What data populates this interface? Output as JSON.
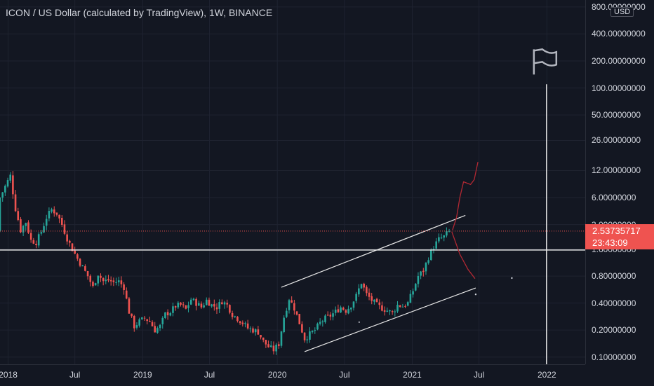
{
  "header": {
    "title": "ICON / US Dollar (calculated by TradingView), 1W, BINANCE"
  },
  "price_axis": {
    "currency": "USD",
    "last_price": "2.53735717",
    "countdown": "23:43:09"
  },
  "colors": {
    "background": "#131722",
    "up": "#26a69a",
    "down": "#ef5350",
    "drawing_white": "#e8e8e8",
    "projection": "#b22833",
    "price_line": "#ef5350"
  },
  "chart_data": {
    "type": "candlestick",
    "scale": "log",
    "ylim": [
      0.0977,
      890
    ],
    "y_ticks": [
      800,
      400,
      200,
      100,
      50,
      26,
      12,
      6,
      3,
      1.6,
      0.8,
      0.4,
      0.2,
      0.1
    ],
    "y_tick_labels": [
      "800.00000000",
      "400.00000000",
      "200.00000000",
      "100.00000000",
      "50.00000000",
      "26.00000000",
      "12.00000000",
      "6.00000000",
      "3.00000000",
      "1.60000000",
      "0.80000000",
      "0.40000000",
      "0.20000000",
      "0.10000000"
    ],
    "x_ticks": [
      {
        "label": "2018",
        "date": "2018-01-01"
      },
      {
        "label": "Jul",
        "date": "2018-07-01"
      },
      {
        "label": "2019",
        "date": "2019-01-01"
      },
      {
        "label": "Jul",
        "date": "2019-07-01"
      },
      {
        "label": "2020",
        "date": "2020-01-01"
      },
      {
        "label": "Jul",
        "date": "2020-07-01"
      },
      {
        "label": "2021",
        "date": "2021-01-01"
      },
      {
        "label": "Jul",
        "date": "2021-07-01"
      },
      {
        "label": "2022",
        "date": "2022-01-01"
      }
    ],
    "xlim": [
      "2017-12-10",
      "2022-04-15"
    ],
    "close_path": [
      [
        "2017-12-10",
        6.0
      ],
      [
        "2017-12-24",
        8.0
      ],
      [
        "2018-01-07",
        10.5
      ],
      [
        "2018-01-21",
        4.5
      ],
      [
        "2018-02-04",
        2.6
      ],
      [
        "2018-02-18",
        3.2
      ],
      [
        "2018-03-04",
        2.0
      ],
      [
        "2018-03-18",
        1.9
      ],
      [
        "2018-04-01",
        2.5
      ],
      [
        "2018-04-15",
        3.6
      ],
      [
        "2018-04-29",
        4.4
      ],
      [
        "2018-05-13",
        4.0
      ],
      [
        "2018-05-27",
        3.0
      ],
      [
        "2018-06-10",
        2.1
      ],
      [
        "2018-06-24",
        1.6
      ],
      [
        "2018-07-08",
        1.25
      ],
      [
        "2018-07-22",
        1.0
      ],
      [
        "2018-08-05",
        0.8
      ],
      [
        "2018-08-19",
        0.6
      ],
      [
        "2018-09-02",
        0.85
      ],
      [
        "2018-09-16",
        0.7
      ],
      [
        "2018-09-30",
        0.72
      ],
      [
        "2018-10-14",
        0.68
      ],
      [
        "2018-10-28",
        0.7
      ],
      [
        "2018-11-11",
        0.6
      ],
      [
        "2018-11-25",
        0.32
      ],
      [
        "2018-12-09",
        0.22
      ],
      [
        "2018-12-23",
        0.25
      ],
      [
        "2019-01-06",
        0.27
      ],
      [
        "2019-01-20",
        0.25
      ],
      [
        "2019-02-03",
        0.2
      ],
      [
        "2019-02-17",
        0.22
      ],
      [
        "2019-03-03",
        0.3
      ],
      [
        "2019-03-17",
        0.32
      ],
      [
        "2019-03-31",
        0.37
      ],
      [
        "2019-04-14",
        0.38
      ],
      [
        "2019-04-28",
        0.34
      ],
      [
        "2019-05-12",
        0.44
      ],
      [
        "2019-05-26",
        0.4
      ],
      [
        "2019-06-09",
        0.36
      ],
      [
        "2019-06-23",
        0.43
      ],
      [
        "2019-07-07",
        0.38
      ],
      [
        "2019-07-21",
        0.36
      ],
      [
        "2019-08-04",
        0.42
      ],
      [
        "2019-08-18",
        0.38
      ],
      [
        "2019-09-01",
        0.3
      ],
      [
        "2019-09-15",
        0.27
      ],
      [
        "2019-09-29",
        0.24
      ],
      [
        "2019-10-13",
        0.21
      ],
      [
        "2019-10-27",
        0.2
      ],
      [
        "2019-11-10",
        0.19
      ],
      [
        "2019-11-24",
        0.15
      ],
      [
        "2019-12-08",
        0.13
      ],
      [
        "2019-12-22",
        0.12
      ],
      [
        "2020-01-05",
        0.14
      ],
      [
        "2020-01-19",
        0.28
      ],
      [
        "2020-02-02",
        0.45
      ],
      [
        "2020-02-16",
        0.35
      ],
      [
        "2020-03-01",
        0.24
      ],
      [
        "2020-03-15",
        0.16
      ],
      [
        "2020-03-29",
        0.18
      ],
      [
        "2020-04-12",
        0.2
      ],
      [
        "2020-04-26",
        0.24
      ],
      [
        "2020-05-10",
        0.27
      ],
      [
        "2020-05-24",
        0.29
      ],
      [
        "2020-06-07",
        0.32
      ],
      [
        "2020-06-21",
        0.36
      ],
      [
        "2020-07-05",
        0.33
      ],
      [
        "2020-07-19",
        0.38
      ],
      [
        "2020-08-02",
        0.48
      ],
      [
        "2020-08-16",
        0.68
      ],
      [
        "2020-08-30",
        0.5
      ],
      [
        "2020-09-13",
        0.43
      ],
      [
        "2020-09-27",
        0.38
      ],
      [
        "2020-10-11",
        0.35
      ],
      [
        "2020-10-25",
        0.33
      ],
      [
        "2020-11-08",
        0.31
      ],
      [
        "2020-11-22",
        0.38
      ],
      [
        "2020-12-06",
        0.37
      ],
      [
        "2020-12-20",
        0.4
      ],
      [
        "2021-01-03",
        0.55
      ],
      [
        "2021-01-17",
        0.8
      ],
      [
        "2021-01-31",
        0.92
      ],
      [
        "2021-02-14",
        1.3
      ],
      [
        "2021-02-28",
        1.7
      ],
      [
        "2021-03-14",
        2.05
      ],
      [
        "2021-03-28",
        2.2
      ],
      [
        "2021-04-11",
        2.54
      ]
    ],
    "annotations": [
      {
        "type": "channel-upper",
        "from": [
          "2020-01-12",
          0.6
        ],
        "to": [
          "2021-05-25",
          3.8
        ]
      },
      {
        "type": "channel-lower",
        "from": [
          "2020-03-15",
          0.115
        ],
        "to": [
          "2021-06-22",
          0.59
        ]
      },
      {
        "type": "horizontal-line",
        "value": 1.56
      },
      {
        "type": "vertical-line",
        "date": "2021-12-31"
      },
      {
        "type": "flag",
        "date": "2021-12-31"
      },
      {
        "type": "projection-up",
        "points": [
          [
            "2021-04-20",
            2.6
          ],
          [
            "2021-05-01",
            3.6
          ],
          [
            "2021-05-10",
            6.0
          ],
          [
            "2021-05-20",
            9.0
          ],
          [
            "2021-06-08",
            8.4
          ],
          [
            "2021-06-18",
            9.5
          ],
          [
            "2021-06-28",
            15.0
          ]
        ]
      },
      {
        "type": "projection-down",
        "points": [
          [
            "2021-04-18",
            2.5
          ],
          [
            "2021-05-10",
            1.4
          ],
          [
            "2021-06-01",
            0.95
          ],
          [
            "2021-06-20",
            0.75
          ]
        ]
      }
    ]
  }
}
